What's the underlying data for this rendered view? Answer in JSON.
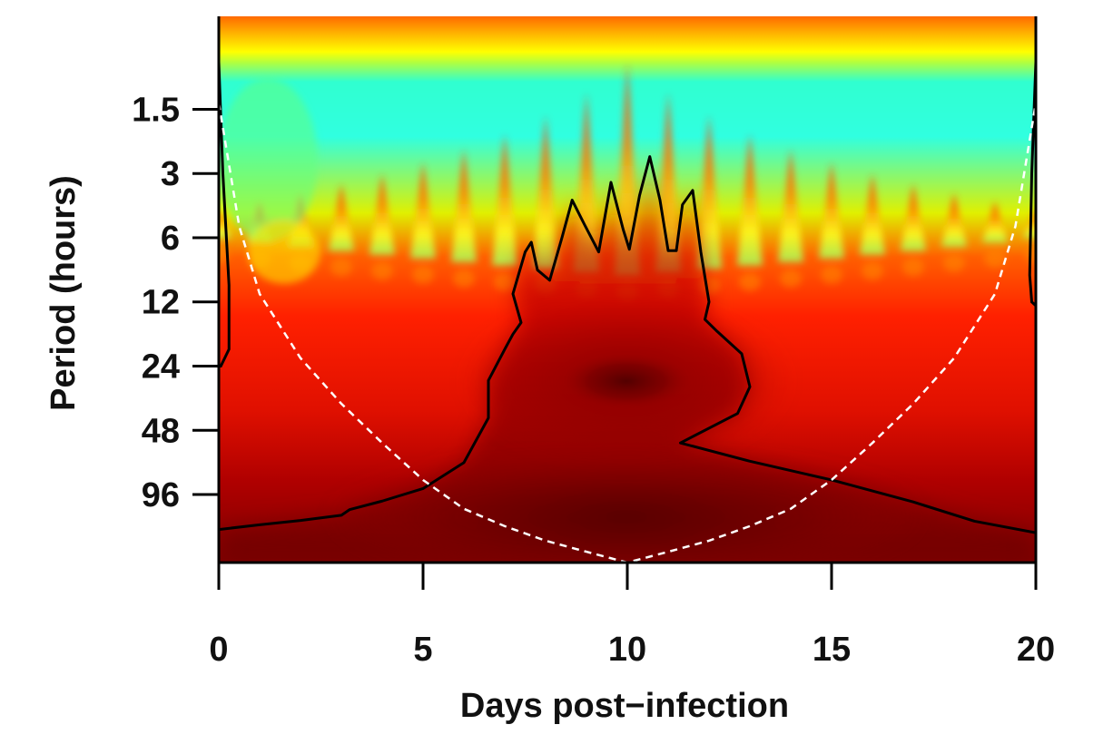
{
  "chart_data": {
    "type": "heatmap",
    "title": "",
    "xlabel": "Days post−infection",
    "ylabel": "Period (hours)",
    "x_range": [
      0,
      20
    ],
    "y_scale": "log2",
    "y_range_hours": [
      0.55,
      200
    ],
    "x_ticks": [
      0,
      5,
      10,
      15,
      20
    ],
    "x_tick_labels": [
      "0",
      "5",
      "10",
      "15",
      "20"
    ],
    "y_ticks": [
      1.5,
      3,
      6,
      12,
      24,
      48,
      96
    ],
    "y_tick_labels": [
      "1.5",
      "3",
      "6",
      "12",
      "24",
      "48",
      "96"
    ],
    "grid": false,
    "legend": "none",
    "colormap": [
      "#600000",
      "#c00000",
      "#ff1a00",
      "#ff7000",
      "#ffe000",
      "#a8ff40",
      "#20ffff"
    ],
    "significance_contour": {
      "color": "#000000",
      "points": [
        [
          0.0,
          140
        ],
        [
          1.0,
          133
        ],
        [
          2.0,
          127
        ],
        [
          3.0,
          120
        ],
        [
          3.2,
          113
        ],
        [
          4.0,
          103
        ],
        [
          5.0,
          90
        ],
        [
          6.0,
          68
        ],
        [
          6.6,
          42
        ],
        [
          6.6,
          28
        ],
        [
          7.0,
          20
        ],
        [
          7.2,
          17
        ],
        [
          7.4,
          15
        ],
        [
          7.2,
          11
        ],
        [
          7.5,
          7.0
        ],
        [
          7.65,
          6.3
        ],
        [
          7.8,
          8.5
        ],
        [
          8.1,
          9.5
        ],
        [
          8.4,
          6.0
        ],
        [
          8.65,
          4.0
        ],
        [
          8.95,
          5.2
        ],
        [
          9.3,
          7.0
        ],
        [
          9.6,
          3.3
        ],
        [
          9.9,
          5.5
        ],
        [
          10.05,
          6.8
        ],
        [
          10.3,
          3.8
        ],
        [
          10.55,
          2.5
        ],
        [
          10.8,
          4.0
        ],
        [
          11.0,
          6.9
        ],
        [
          11.2,
          6.9
        ],
        [
          11.35,
          4.2
        ],
        [
          11.6,
          3.6
        ],
        [
          11.8,
          7.0
        ],
        [
          12.0,
          12.0
        ],
        [
          11.9,
          14.5
        ],
        [
          12.2,
          16.5
        ],
        [
          12.8,
          21
        ],
        [
          13.0,
          30
        ],
        [
          12.7,
          40
        ],
        [
          11.3,
          55
        ],
        [
          13.0,
          67
        ],
        [
          15.0,
          82
        ],
        [
          17.0,
          104
        ],
        [
          18.5,
          128
        ],
        [
          20.0,
          145
        ]
      ]
    },
    "cone_of_influence": {
      "color": "#ffffff",
      "style": "dashed",
      "points": [
        [
          0.0,
          1.4
        ],
        [
          0.5,
          5.3
        ],
        [
          1.0,
          11
        ],
        [
          2.0,
          22
        ],
        [
          3.0,
          36
        ],
        [
          4.0,
          55
        ],
        [
          5.0,
          82
        ],
        [
          6.0,
          112
        ],
        [
          7.0,
          135
        ],
        [
          8.0,
          158
        ],
        [
          9.0,
          178
        ],
        [
          10.0,
          200
        ],
        [
          11.0,
          178
        ],
        [
          12.0,
          158
        ],
        [
          13.0,
          135
        ],
        [
          14.0,
          112
        ],
        [
          15.0,
          82
        ],
        [
          16.0,
          55
        ],
        [
          17.0,
          36
        ],
        [
          18.0,
          22
        ],
        [
          19.0,
          11
        ],
        [
          19.5,
          5.3
        ],
        [
          20.0,
          1.4
        ]
      ]
    }
  }
}
